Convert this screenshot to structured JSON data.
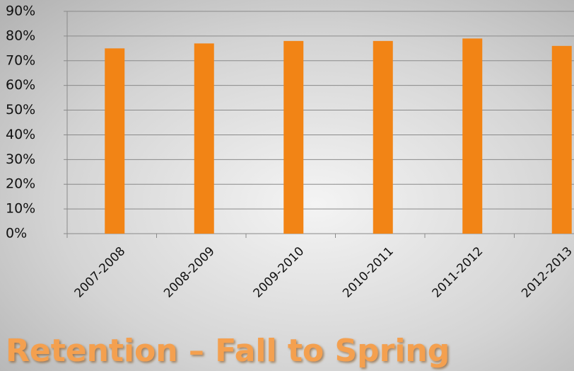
{
  "chart_data": {
    "type": "bar",
    "title": "Retention – Fall to Spring",
    "categories": [
      "2007-2008",
      "2008-2009",
      "2009-2010",
      "2010-2011",
      "2011-2012",
      "2012-2013"
    ],
    "values": [
      75,
      77,
      78,
      78,
      79,
      76
    ],
    "color": "#f28415",
    "ylim": [
      0,
      90
    ],
    "yticks": [
      {
        "value": 0,
        "label": "0%"
      },
      {
        "value": 10,
        "label": "10%"
      },
      {
        "value": 20,
        "label": "20%"
      },
      {
        "value": 30,
        "label": "30%"
      },
      {
        "value": 40,
        "label": "40%"
      },
      {
        "value": 50,
        "label": "50%"
      },
      {
        "value": 60,
        "label": "60%"
      },
      {
        "value": 70,
        "label": "70%"
      },
      {
        "value": 80,
        "label": "80%"
      },
      {
        "value": 90,
        "label": "90%"
      }
    ],
    "grid": true
  }
}
